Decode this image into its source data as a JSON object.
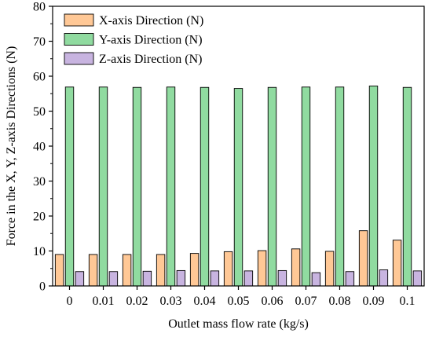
{
  "chart_data": {
    "type": "bar",
    "categories": [
      "0",
      "0.01",
      "0.02",
      "0.03",
      "0.04",
      "0.05",
      "0.06",
      "0.07",
      "0.08",
      "0.09",
      "0.1"
    ],
    "series": [
      {
        "name": "X-axis Direction (N)",
        "color": "#FFC896",
        "values": [
          9.0,
          9.0,
          9.0,
          9.0,
          9.3,
          9.8,
          10.1,
          10.6,
          9.9,
          15.8,
          13.1
        ]
      },
      {
        "name": "Y-axis Direction (N)",
        "color": "#90DBA0",
        "values": [
          56.9,
          56.9,
          56.8,
          56.9,
          56.8,
          56.5,
          56.8,
          56.9,
          56.9,
          57.2,
          56.8
        ]
      },
      {
        "name": "Z-axis Direction (N)",
        "color": "#C8B4E0",
        "values": [
          4.1,
          4.1,
          4.2,
          4.4,
          4.3,
          4.3,
          4.4,
          3.8,
          4.1,
          4.6,
          4.3
        ]
      }
    ],
    "xlabel": "Outlet mass flow rate (kg/s)",
    "ylabel": "Force in the X, Y, Z-axis Directions (N)",
    "ylim": [
      0,
      80
    ],
    "yticks": [
      "0",
      "10",
      "20",
      "30",
      "40",
      "50",
      "60",
      "70",
      "80"
    ],
    "legend_position": "top-left",
    "grid": false
  }
}
